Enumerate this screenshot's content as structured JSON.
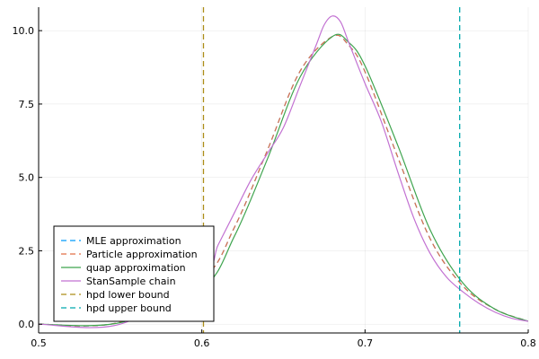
{
  "chart_data": {
    "type": "line",
    "title": "",
    "xlabel": "",
    "ylabel": "",
    "xlim": [
      0.5,
      0.8
    ],
    "ylim": [
      -0.3,
      10.8
    ],
    "xticks": [
      0.5,
      0.6,
      0.7,
      0.8
    ],
    "xtick_labels": [
      "0.5",
      "0.6",
      "0.7",
      "0.8"
    ],
    "yticks": [
      0.0,
      2.5,
      5.0,
      7.5,
      10.0
    ],
    "ytick_labels": [
      "0.0",
      "2.5",
      "5.0",
      "7.5",
      "10.0"
    ],
    "grid": true,
    "legend_position": "bottom-left",
    "series": [
      {
        "name": "MLE approximation",
        "color": "#009AFA",
        "dash": "dashed",
        "x": [
          0.5,
          0.55,
          0.6,
          0.62,
          0.64,
          0.66,
          0.68,
          0.69,
          0.7,
          0.72,
          0.74,
          0.76,
          0.78,
          0.8
        ],
        "y": [
          0.0,
          0.07,
          1.5,
          3.3,
          5.9,
          8.6,
          9.8,
          9.5,
          8.6,
          5.7,
          2.9,
          1.3,
          0.5,
          0.1
        ]
      },
      {
        "name": "Particle approximation",
        "color": "#E26F46",
        "dash": "dashed",
        "x": [
          0.5,
          0.55,
          0.6,
          0.62,
          0.64,
          0.66,
          0.68,
          0.69,
          0.7,
          0.72,
          0.74,
          0.76,
          0.78,
          0.8
        ],
        "y": [
          0.0,
          0.07,
          1.5,
          3.3,
          5.9,
          8.6,
          9.8,
          9.5,
          8.6,
          5.7,
          2.9,
          1.3,
          0.5,
          0.1
        ]
      },
      {
        "name": "quap approximation",
        "color": "#3EA44E",
        "dash": "solid",
        "x": [
          0.5,
          0.55,
          0.6,
          0.62,
          0.64,
          0.66,
          0.68,
          0.69,
          0.7,
          0.72,
          0.74,
          0.76,
          0.78,
          0.8
        ],
        "y": [
          0.0,
          0.05,
          1.2,
          3.0,
          5.6,
          8.4,
          9.8,
          9.6,
          8.8,
          6.1,
          3.2,
          1.4,
          0.5,
          0.1
        ]
      },
      {
        "name": "StanSample chain",
        "color": "#C271D2",
        "dash": "solid",
        "x": [
          0.5,
          0.55,
          0.6,
          0.61,
          0.62,
          0.63,
          0.64,
          0.65,
          0.66,
          0.67,
          0.675,
          0.68,
          0.685,
          0.69,
          0.7,
          0.71,
          0.72,
          0.73,
          0.74,
          0.75,
          0.76,
          0.77,
          0.78,
          0.79,
          0.8
        ],
        "y": [
          0.0,
          0.0,
          1.6,
          2.7,
          3.8,
          4.9,
          5.8,
          6.7,
          8.1,
          9.5,
          10.2,
          10.5,
          10.3,
          9.6,
          8.2,
          6.9,
          5.2,
          3.6,
          2.4,
          1.6,
          1.1,
          0.7,
          0.4,
          0.2,
          0.1
        ]
      },
      {
        "name": "hpd lower bound",
        "color": "#AC8D18",
        "dash": "dashed",
        "vline": 0.601
      },
      {
        "name": "hpd upper bound",
        "color": "#00A9AD",
        "dash": "dashed",
        "vline": 0.758
      }
    ]
  }
}
